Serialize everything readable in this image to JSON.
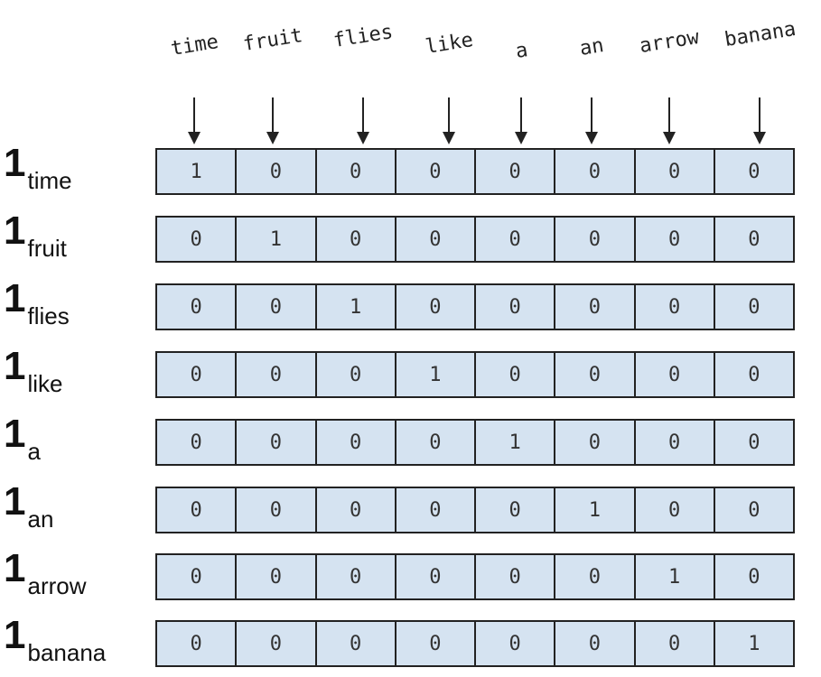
{
  "vocabulary": [
    "time",
    "fruit",
    "flies",
    "like",
    "a",
    "an",
    "arrow",
    "banana"
  ],
  "rows": [
    {
      "symbol": "1",
      "subscript": "time",
      "values": [
        "1",
        "0",
        "0",
        "0",
        "0",
        "0",
        "0",
        "0"
      ]
    },
    {
      "symbol": "1",
      "subscript": "fruit",
      "values": [
        "0",
        "1",
        "0",
        "0",
        "0",
        "0",
        "0",
        "0"
      ]
    },
    {
      "symbol": "1",
      "subscript": "flies",
      "values": [
        "0",
        "0",
        "1",
        "0",
        "0",
        "0",
        "0",
        "0"
      ]
    },
    {
      "symbol": "1",
      "subscript": "like",
      "values": [
        "0",
        "0",
        "0",
        "1",
        "0",
        "0",
        "0",
        "0"
      ]
    },
    {
      "symbol": "1",
      "subscript": "a",
      "values": [
        "0",
        "0",
        "0",
        "0",
        "1",
        "0",
        "0",
        "0"
      ]
    },
    {
      "symbol": "1",
      "subscript": "an",
      "values": [
        "0",
        "0",
        "0",
        "0",
        "0",
        "1",
        "0",
        "0"
      ]
    },
    {
      "symbol": "1",
      "subscript": "arrow",
      "values": [
        "0",
        "0",
        "0",
        "0",
        "0",
        "0",
        "1",
        "0"
      ]
    },
    {
      "symbol": "1",
      "subscript": "banana",
      "values": [
        "0",
        "0",
        "0",
        "0",
        "0",
        "0",
        "0",
        "1"
      ]
    }
  ],
  "colors": {
    "cell_fill": "#d5e3f1",
    "stroke": "#222222"
  }
}
